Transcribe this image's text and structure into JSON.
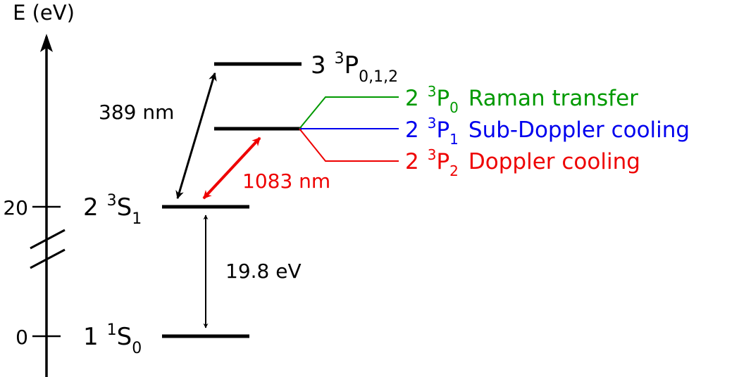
{
  "axis": {
    "label": "E (eV)",
    "ticks": [
      {
        "label": "20"
      },
      {
        "label": "0"
      }
    ]
  },
  "levels": {
    "ground": {
      "main": "1",
      "sup": "1",
      "sym": "S",
      "sub": "0"
    },
    "metastable": {
      "main": "2",
      "sup": "3",
      "sym": "S",
      "sub": "1"
    },
    "p2": {
      "main": "2"
    },
    "p3": {
      "main": "3",
      "sup": "3",
      "sym": "P",
      "sub": "0,1,2"
    }
  },
  "fine_structure": [
    {
      "main": "2",
      "sup": "3",
      "sym": "P",
      "sub": "0",
      "desc": "Raman transfer",
      "color": "#009900"
    },
    {
      "main": "2",
      "sup": "3",
      "sym": "P",
      "sub": "1",
      "desc": "Sub-Doppler cooling",
      "color": "#0000ee"
    },
    {
      "main": "2",
      "sup": "3",
      "sym": "P",
      "sub": "2",
      "desc": "Doppler cooling",
      "color": "#ee0000"
    }
  ],
  "transitions": {
    "uv": {
      "label": "389 nm",
      "color": "#000000"
    },
    "ir": {
      "label": "1083 nm",
      "color": "#ee0000"
    },
    "gap": {
      "label": "19.8 eV",
      "color": "#000000"
    }
  }
}
